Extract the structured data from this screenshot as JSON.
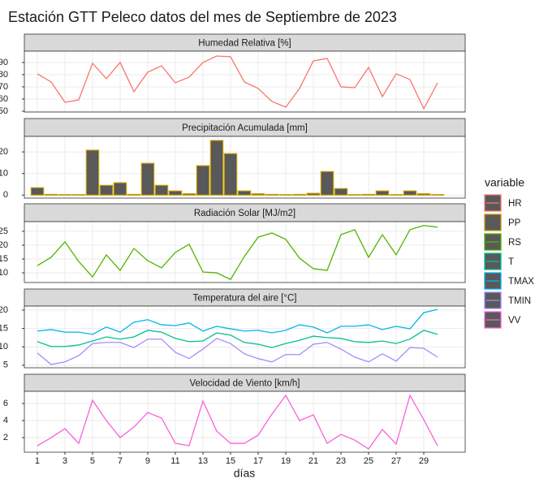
{
  "title": "Estación GTT Peleco datos del mes de Septiembre de 2023",
  "xlabel": "días",
  "legend_title": "variable",
  "chart_data": [
    {
      "type": "line",
      "title": "Humedad Relativa [%]",
      "x": [
        1,
        2,
        3,
        4,
        5,
        6,
        7,
        8,
        9,
        10,
        11,
        12,
        13,
        14,
        15,
        16,
        17,
        18,
        19,
        20,
        21,
        22,
        23,
        24,
        25,
        26,
        27,
        28,
        29,
        30
      ],
      "xlim": [
        0.06,
        32
      ],
      "xticks": [
        1,
        3,
        5,
        7,
        9,
        11,
        13,
        15,
        17,
        19,
        21,
        23,
        25,
        27,
        29
      ],
      "ylim": [
        49.3,
        99.3
      ],
      "yticks": [
        50,
        60,
        70,
        80,
        90
      ],
      "series": [
        {
          "name": "HR",
          "color": "#F8766D",
          "values": [
            80.7,
            74,
            57.3,
            59.3,
            89.3,
            76.7,
            90,
            66,
            82,
            87.3,
            73.3,
            78,
            90,
            95.3,
            94.7,
            74,
            68.7,
            58,
            53.3,
            68.7,
            91.3,
            93.3,
            70,
            69.3,
            86,
            62,
            80.7,
            76,
            52,
            73.3
          ]
        }
      ]
    },
    {
      "type": "bar",
      "title": "Precipitación Acumulada [mm]",
      "x": [
        1,
        2,
        3,
        4,
        5,
        6,
        7,
        8,
        9,
        10,
        11,
        12,
        13,
        14,
        15,
        16,
        17,
        18,
        19,
        20,
        21,
        22,
        23,
        24,
        25,
        26,
        27,
        28,
        29,
        30
      ],
      "xlim": [
        0.06,
        32
      ],
      "xticks": [
        1,
        3,
        5,
        7,
        9,
        11,
        13,
        15,
        17,
        19,
        21,
        23,
        25,
        27,
        29
      ],
      "ylim": [
        -1.4,
        27.2
      ],
      "yticks": [
        0,
        10,
        20
      ],
      "series": [
        {
          "name": "PP",
          "color": "#C49A00",
          "values": [
            3.4,
            0.3,
            0.2,
            0.2,
            20.8,
            4.5,
            5.7,
            0.3,
            14.7,
            4.5,
            1.9,
            0.6,
            13.6,
            25.3,
            19.2,
            1.9,
            0.6,
            0.3,
            0.2,
            0.3,
            0.8,
            10.9,
            3.0,
            0.2,
            0.3,
            1.9,
            0.2,
            1.9,
            0.6,
            0.2
          ]
        }
      ]
    },
    {
      "type": "line",
      "title": "Radiación Solar [MJ/m2]",
      "x": [
        1,
        2,
        3,
        4,
        5,
        6,
        7,
        8,
        9,
        10,
        11,
        12,
        13,
        14,
        15,
        16,
        17,
        18,
        19,
        20,
        21,
        22,
        23,
        24,
        25,
        26,
        27,
        28,
        29,
        30
      ],
      "xlim": [
        0.06,
        32
      ],
      "xticks": [
        1,
        3,
        5,
        7,
        9,
        11,
        13,
        15,
        17,
        19,
        21,
        23,
        25,
        27,
        29
      ],
      "ylim": [
        6.5,
        28.5
      ],
      "yticks": [
        10,
        15,
        20,
        25
      ],
      "series": [
        {
          "name": "RS",
          "color": "#53B400",
          "values": [
            12.6,
            15.6,
            21.2,
            14.1,
            8.5,
            16.5,
            10.9,
            18.8,
            14.4,
            11.8,
            17.4,
            20.3,
            10.3,
            10,
            7.6,
            15.9,
            22.9,
            24.4,
            22.1,
            15.3,
            11.5,
            10.9,
            23.8,
            25.6,
            15.6,
            23.8,
            16.5,
            25.6,
            27.1,
            26.5
          ]
        }
      ]
    },
    {
      "type": "line",
      "title": "Temperatura del aire [°C]",
      "x": [
        1,
        2,
        3,
        4,
        5,
        6,
        7,
        8,
        9,
        10,
        11,
        12,
        13,
        14,
        15,
        16,
        17,
        18,
        19,
        20,
        21,
        22,
        23,
        24,
        25,
        26,
        27,
        28,
        29,
        30
      ],
      "xlim": [
        0.06,
        32
      ],
      "xticks": [
        1,
        3,
        5,
        7,
        9,
        11,
        13,
        15,
        17,
        19,
        21,
        23,
        25,
        27,
        29
      ],
      "ylim": [
        4.3,
        21.1
      ],
      "yticks": [
        5,
        10,
        15,
        20
      ],
      "series": [
        {
          "name": "T",
          "color": "#00C094",
          "values": [
            11.4,
            10.1,
            10.1,
            10.5,
            11.6,
            12.7,
            12.1,
            12.7,
            14.5,
            14.0,
            12.3,
            11.4,
            11.6,
            13.8,
            13.2,
            11.2,
            10.7,
            9.8,
            10.9,
            11.8,
            12.9,
            12.5,
            12.3,
            11.4,
            11.2,
            11.6,
            10.9,
            12.1,
            14.5,
            13.4
          ]
        },
        {
          "name": "TMAX",
          "color": "#00B6EB",
          "values": [
            14.3,
            14.7,
            14.0,
            14.0,
            13.4,
            15.4,
            14.0,
            16.7,
            17.4,
            16.0,
            15.8,
            16.5,
            14.3,
            15.6,
            14.9,
            14.3,
            14.5,
            13.8,
            14.5,
            16.0,
            15.4,
            13.8,
            15.6,
            15.6,
            16.0,
            14.7,
            15.6,
            14.9,
            19.3,
            20.2
          ]
        },
        {
          "name": "TMIN",
          "color": "#A58AFF",
          "values": [
            8.3,
            5.2,
            5.9,
            7.6,
            10.9,
            11.2,
            11.2,
            9.8,
            12.1,
            12.1,
            8.5,
            6.8,
            9.4,
            12.3,
            10.9,
            8.1,
            6.8,
            5.9,
            7.9,
            7.9,
            10.7,
            11.2,
            9.4,
            7.2,
            5.9,
            8.1,
            6.1,
            9.8,
            9.6,
            7.2
          ]
        }
      ]
    },
    {
      "type": "line",
      "title": "Velocidad de Viento [km/h]",
      "x": [
        1,
        2,
        3,
        4,
        5,
        6,
        7,
        8,
        9,
        10,
        11,
        12,
        13,
        14,
        15,
        16,
        17,
        18,
        19,
        20,
        21,
        22,
        23,
        24,
        25,
        26,
        27,
        28,
        29,
        30
      ],
      "xlim": [
        0.06,
        32
      ],
      "xticks": [
        1,
        3,
        5,
        7,
        9,
        11,
        13,
        15,
        17,
        19,
        21,
        23,
        25,
        27,
        29
      ],
      "ylim": [
        0.29,
        7.43
      ],
      "yticks": [
        2,
        4,
        6
      ],
      "series": [
        {
          "name": "VV",
          "color": "#FB61D7",
          "values": [
            1.05,
            2.0,
            3.05,
            1.33,
            6.38,
            4.0,
            2.0,
            3.24,
            4.95,
            4.29,
            1.33,
            1.05,
            6.29,
            2.76,
            1.33,
            1.33,
            2.29,
            4.76,
            6.95,
            4.0,
            4.67,
            1.33,
            2.38,
            1.71,
            0.67,
            2.95,
            1.24,
            6.95,
            4.1,
            1.05
          ]
        }
      ]
    }
  ]
}
